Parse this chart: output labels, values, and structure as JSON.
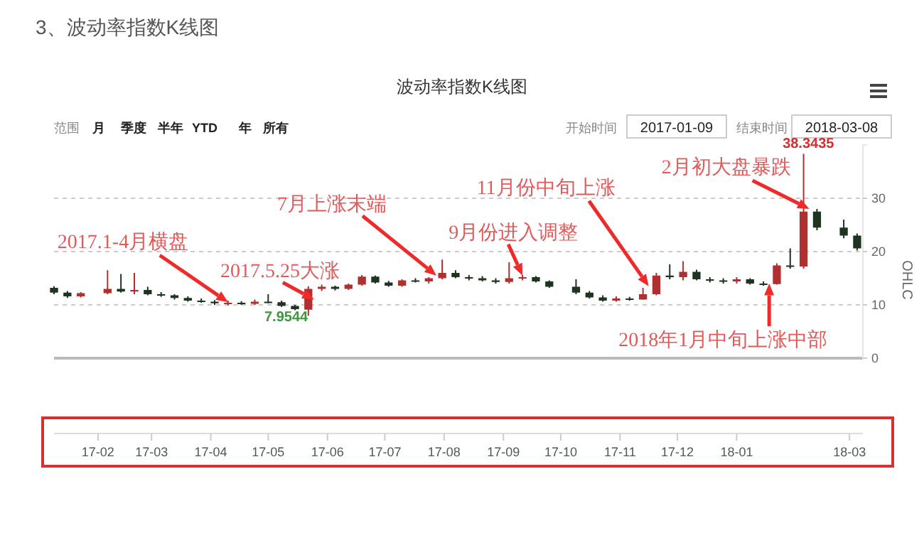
{
  "chart_data": {
    "type": "candlestick",
    "title": "3、波动率指数K线图",
    "subtitle": "波动率指数K线图",
    "y2label": "OHLC",
    "x": [
      "2017-01-09",
      "2017-01-16",
      "2017-01-23",
      "2017-02-06",
      "2017-02-13",
      "2017-02-20",
      "2017-02-27",
      "2017-03-06",
      "2017-03-13",
      "2017-03-20",
      "2017-03-27",
      "2017-04-03",
      "2017-04-10",
      "2017-04-17",
      "2017-04-24",
      "2017-05-01",
      "2017-05-08",
      "2017-05-15",
      "2017-05-22",
      "2017-05-29",
      "2017-06-05",
      "2017-06-12",
      "2017-06-19",
      "2017-06-26",
      "2017-07-03",
      "2017-07-10",
      "2017-07-17",
      "2017-07-24",
      "2017-07-31",
      "2017-08-07",
      "2017-08-14",
      "2017-08-21",
      "2017-08-28",
      "2017-09-04",
      "2017-09-11",
      "2017-09-18",
      "2017-09-25",
      "2017-10-09",
      "2017-10-16",
      "2017-10-23",
      "2017-10-30",
      "2017-11-06",
      "2017-11-13",
      "2017-11-20",
      "2017-11-27",
      "2017-12-04",
      "2017-12-11",
      "2017-12-18",
      "2017-12-25",
      "2018-01-01",
      "2018-01-08",
      "2018-01-15",
      "2018-01-22",
      "2018-01-29",
      "2018-02-05",
      "2018-02-12",
      "2018-02-26",
      "2018-03-05"
    ],
    "ohlc": [
      [
        13.2,
        13.5,
        12.0,
        12.3
      ],
      [
        12.3,
        12.6,
        11.3,
        11.6
      ],
      [
        11.6,
        12.4,
        11.4,
        12.2
      ],
      [
        12.2,
        16.5,
        12.0,
        13.0
      ],
      [
        13.0,
        15.8,
        12.3,
        12.5
      ],
      [
        12.5,
        16.0,
        12.0,
        12.8
      ],
      [
        12.8,
        13.4,
        11.8,
        12.0
      ],
      [
        12.0,
        12.4,
        11.5,
        11.8
      ],
      [
        11.8,
        12.0,
        11.0,
        11.3
      ],
      [
        11.3,
        11.6,
        10.6,
        10.8
      ],
      [
        10.8,
        11.2,
        10.4,
        10.6
      ],
      [
        10.6,
        10.9,
        10.0,
        10.3
      ],
      [
        10.3,
        10.8,
        9.9,
        10.4
      ],
      [
        10.4,
        10.7,
        10.0,
        10.2
      ],
      [
        10.2,
        11.0,
        10.0,
        10.6
      ],
      [
        10.6,
        12.0,
        10.3,
        10.5
      ],
      [
        10.5,
        10.8,
        9.6,
        9.8
      ],
      [
        9.8,
        10.0,
        9.0,
        9.2
      ],
      [
        9.1,
        13.5,
        7.9544,
        13.0
      ],
      [
        13.0,
        13.8,
        12.6,
        13.4
      ],
      [
        13.4,
        13.6,
        12.7,
        13.0
      ],
      [
        13.0,
        14.0,
        12.8,
        13.8
      ],
      [
        13.8,
        15.6,
        13.6,
        15.3
      ],
      [
        15.3,
        15.5,
        14.0,
        14.2
      ],
      [
        14.2,
        14.5,
        13.4,
        13.6
      ],
      [
        13.6,
        14.8,
        13.4,
        14.6
      ],
      [
        14.6,
        15.0,
        14.2,
        14.4
      ],
      [
        14.4,
        15.2,
        14.0,
        15.0
      ],
      [
        15.0,
        18.5,
        14.8,
        16.0
      ],
      [
        16.0,
        16.5,
        15.0,
        15.2
      ],
      [
        15.2,
        15.6,
        14.6,
        15.0
      ],
      [
        15.0,
        15.4,
        14.4,
        14.6
      ],
      [
        14.6,
        15.0,
        14.0,
        14.3
      ],
      [
        14.3,
        18.0,
        14.0,
        15.0
      ],
      [
        15.0,
        15.6,
        14.6,
        15.2
      ],
      [
        15.2,
        15.4,
        14.2,
        14.4
      ],
      [
        14.4,
        14.6,
        13.2,
        13.4
      ],
      [
        13.4,
        14.8,
        12.0,
        12.3
      ],
      [
        12.3,
        12.6,
        11.2,
        11.4
      ],
      [
        11.4,
        11.8,
        10.6,
        10.8
      ],
      [
        10.8,
        11.6,
        10.6,
        11.2
      ],
      [
        11.2,
        11.5,
        10.8,
        11.0
      ],
      [
        11.0,
        13.2,
        11.0,
        12.0
      ],
      [
        12.0,
        16.0,
        11.8,
        15.5
      ],
      [
        15.5,
        17.6,
        14.8,
        15.2
      ],
      [
        15.2,
        18.2,
        14.6,
        16.2
      ],
      [
        16.2,
        16.6,
        14.6,
        14.8
      ],
      [
        14.8,
        15.2,
        14.2,
        14.6
      ],
      [
        14.6,
        15.0,
        14.0,
        14.4
      ],
      [
        14.4,
        15.2,
        14.0,
        14.8
      ],
      [
        14.8,
        15.0,
        13.8,
        14.0
      ],
      [
        14.0,
        14.4,
        13.6,
        13.9
      ],
      [
        13.9,
        17.8,
        13.8,
        17.4
      ],
      [
        17.4,
        20.6,
        16.8,
        17.2
      ],
      [
        17.2,
        38.3435,
        16.8,
        27.5
      ],
      [
        27.5,
        28.0,
        24.0,
        24.5
      ],
      [
        24.5,
        26.0,
        22.5,
        23.0
      ],
      [
        23.0,
        23.4,
        20.2,
        20.6
      ]
    ],
    "xlim": [
      "2017-01-09",
      "2018-03-08"
    ],
    "xticks": [
      {
        "value": "2017-02-01",
        "label": "17-02"
      },
      {
        "value": "2017-03-01",
        "label": "17-03"
      },
      {
        "value": "2017-04-01",
        "label": "17-04"
      },
      {
        "value": "2017-05-01",
        "label": "17-05"
      },
      {
        "value": "2017-06-01",
        "label": "17-06"
      },
      {
        "value": "2017-07-01",
        "label": "17-07"
      },
      {
        "value": "2017-08-01",
        "label": "17-08"
      },
      {
        "value": "2017-09-01",
        "label": "17-09"
      },
      {
        "value": "2017-10-01",
        "label": "17-10"
      },
      {
        "value": "2017-11-01",
        "label": "17-11"
      },
      {
        "value": "2017-12-01",
        "label": "17-12"
      },
      {
        "value": "2018-01-01",
        "label": "18-01"
      },
      {
        "value": "2018-03-01",
        "label": "18-03"
      }
    ],
    "y2lim": [
      0,
      40
    ],
    "y2ticks": [
      0,
      10,
      20,
      30
    ],
    "grid": "y",
    "annotations": [
      {
        "text": "2017.1-4月横盘",
        "x": "2017-04-10",
        "y": 10.5
      },
      {
        "text": "2017.5.25大涨",
        "x": "2017-05-25",
        "y": 11
      },
      {
        "text": "7月上涨末端",
        "x": "2017-07-28",
        "y": 15.5
      },
      {
        "text": "9月份进入调整",
        "x": "2017-09-11",
        "y": 15.5
      },
      {
        "text": "11月份中旬上涨",
        "x": "2017-11-16",
        "y": 13.5
      },
      {
        "text": "2018年1月中旬上涨中部",
        "x": "2018-01-18",
        "y": 14
      },
      {
        "text": "2月初大盘暴跌",
        "x": "2018-02-08",
        "y": 28
      },
      {
        "text": "7.9544",
        "x": "2017-05-24",
        "y": 7.9544
      },
      {
        "text": "38.3435",
        "x": "2018-02-06",
        "y": 38.3435
      },
      "范围",
      "月",
      "季度",
      "半年",
      "YTD",
      "年",
      "所有",
      "开始时间",
      "2017-01-09",
      "结束时间",
      "2018-03-08"
    ]
  }
}
